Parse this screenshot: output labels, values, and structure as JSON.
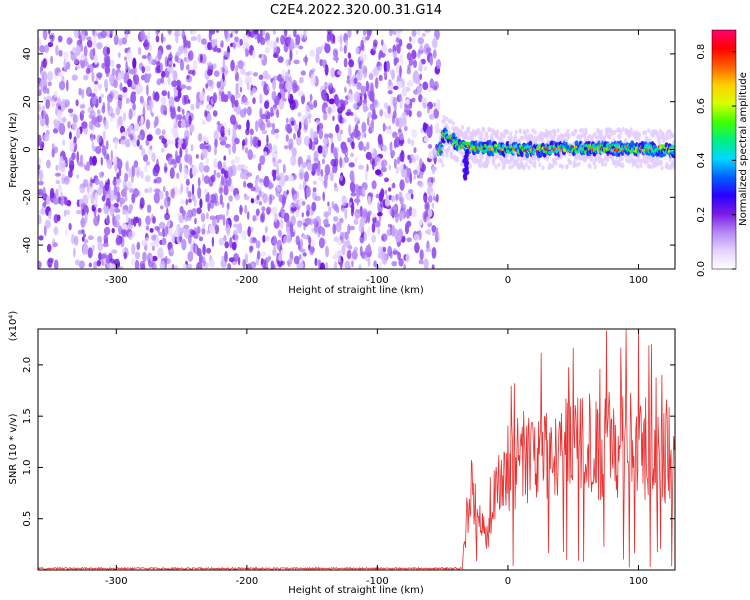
{
  "figure_title": "C2E4.2022.320.00.31.G14",
  "chart_data": [
    {
      "type": "heatmap",
      "xlabel": "Height of straight line (km)",
      "ylabel": "Frequency (Hz)",
      "xlim": [
        -360,
        128
      ],
      "ylim": [
        -50,
        50
      ],
      "xticks": [
        -300,
        -200,
        -100,
        0,
        100
      ],
      "yticks": [
        -40,
        -20,
        0,
        20,
        40
      ],
      "noise_region": {
        "x_range": [
          -360,
          -53
        ],
        "description": "broadband speckle across all frequencies"
      },
      "signal_trace": {
        "x_range": [
          -53,
          128
        ],
        "center_frequency_hz": [
          {
            "x": -50,
            "y": 6
          },
          {
            "x": -45,
            "y": 5
          },
          {
            "x": -38,
            "y": 2
          },
          {
            "x": -30,
            "y": 1
          },
          {
            "x": -20,
            "y": 1
          },
          {
            "x": 0,
            "y": 0
          },
          {
            "x": 40,
            "y": 0
          },
          {
            "x": 80,
            "y": 0.5
          },
          {
            "x": 128,
            "y": 0
          }
        ],
        "tail": {
          "x": -32,
          "y_range": [
            -12,
            0
          ]
        }
      },
      "colorbar": {
        "label": "Normalized spectral amplitude",
        "range": [
          0,
          0.88
        ],
        "ticks": [
          "0.0",
          "0.2",
          "0.4",
          "0.6",
          "0.8"
        ],
        "colors": [
          "#ffffff",
          "#e6d2ff",
          "#b486f5",
          "#7a1be6",
          "#2a00ff",
          "#0060ff",
          "#00d8ff",
          "#00f080",
          "#40ff00",
          "#d8ff00",
          "#ffd000",
          "#ff6000",
          "#ff0000",
          "#ff0070"
        ]
      }
    },
    {
      "type": "line",
      "xlabel": "Height of straight line (km)",
      "ylabel": "SNR (10 * v/v)",
      "y_multiplier": "(x10⁴)",
      "xlim": [
        -360,
        128
      ],
      "ylim": [
        0,
        2.35
      ],
      "xticks": [
        -300,
        -200,
        -100,
        0,
        100
      ],
      "yticks": [
        "0.5",
        "1.0",
        "1.5",
        "2.0"
      ],
      "line_color": "#e83030",
      "series": [
        {
          "name": "",
          "x_step_km": 0.5,
          "envelope": [
            {
              "x": -360,
              "y": 0.03
            },
            {
              "x": -100,
              "y": 0.03
            },
            {
              "x": -35,
              "y": 0.03
            },
            {
              "x": -30,
              "y": 0.7
            },
            {
              "x": -26,
              "y": 0.8
            },
            {
              "x": -22,
              "y": 0.45
            },
            {
              "x": -16,
              "y": 0.3
            },
            {
              "x": -10,
              "y": 0.8
            },
            {
              "x": 0,
              "y": 1.0
            },
            {
              "x": 20,
              "y": 1.15
            },
            {
              "x": 40,
              "y": 1.25
            },
            {
              "x": 60,
              "y": 1.2
            },
            {
              "x": 80,
              "y": 1.2
            },
            {
              "x": 100,
              "y": 1.2
            },
            {
              "x": 128,
              "y": 1.15
            }
          ],
          "peak": {
            "x": 100,
            "y": 2.35
          }
        }
      ]
    }
  ]
}
